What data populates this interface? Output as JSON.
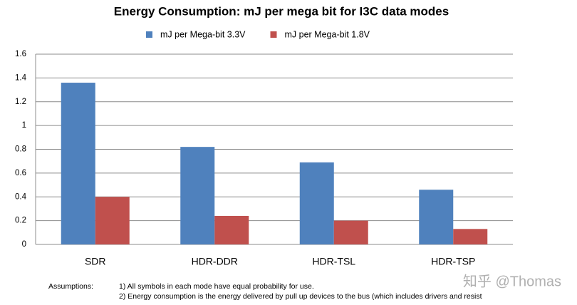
{
  "chart_data": {
    "type": "bar",
    "title": "Energy Consumption: mJ per mega bit for I3C data modes",
    "categories": [
      "SDR",
      "HDR-DDR",
      "HDR-TSL",
      "HDR-TSP"
    ],
    "series": [
      {
        "name": "mJ per Mega-bit 3.3V",
        "color": "#4f81bd",
        "values": [
          1.36,
          0.82,
          0.69,
          0.46
        ]
      },
      {
        "name": "mJ per Mega-bit 1.8V",
        "color": "#c0504d",
        "values": [
          0.4,
          0.24,
          0.2,
          0.13
        ]
      }
    ],
    "ylim": [
      0,
      1.6
    ],
    "yticks": [
      0,
      0.2,
      0.4,
      0.6,
      0.8,
      1,
      1.2,
      1.4,
      1.6
    ],
    "grid": true,
    "legend": "top",
    "footnote": {
      "label": "Assumptions:",
      "lines": [
        "1) All symbols in each mode have equal probability for use.",
        "2) Energy consumption is the energy delivered by pull  up devices to the bus (which includes drivers and resist"
      ]
    },
    "watermark": "知乎 @Thomas"
  }
}
